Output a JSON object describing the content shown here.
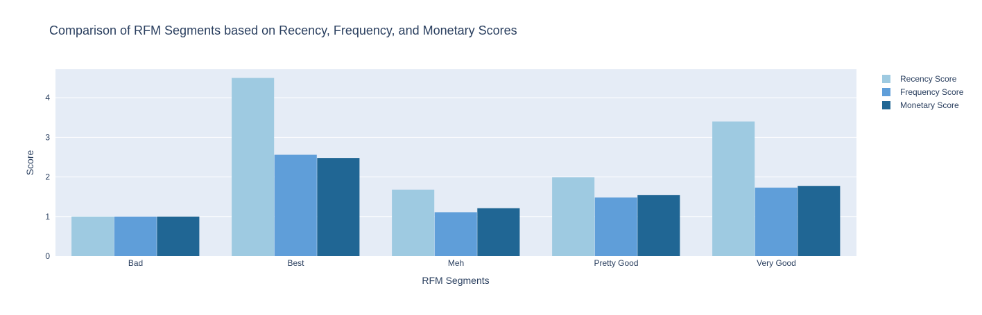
{
  "chart_data": {
    "type": "bar",
    "title": "Comparison of RFM Segments based on Recency, Frequency, and Monetary Scores",
    "xlabel": "RFM Segments",
    "ylabel": "Score",
    "categories": [
      "Bad",
      "Best",
      "Meh",
      "Pretty Good",
      "Very Good"
    ],
    "ylim": [
      0,
      4.72
    ],
    "yticks": [
      0,
      1,
      2,
      3,
      4
    ],
    "grid": true,
    "legend_position": "top-right",
    "series": [
      {
        "name": "Recency Score",
        "color": "#9ecae1",
        "values": [
          1.0,
          4.5,
          1.68,
          1.99,
          3.4
        ]
      },
      {
        "name": "Frequency Score",
        "color": "#5f9ed9",
        "values": [
          1.0,
          2.56,
          1.11,
          1.48,
          1.73
        ]
      },
      {
        "name": "Monetary Score",
        "color": "#206694",
        "values": [
          1.0,
          2.48,
          1.21,
          1.54,
          1.77
        ]
      }
    ],
    "plot_background": "#e5ecf6"
  }
}
